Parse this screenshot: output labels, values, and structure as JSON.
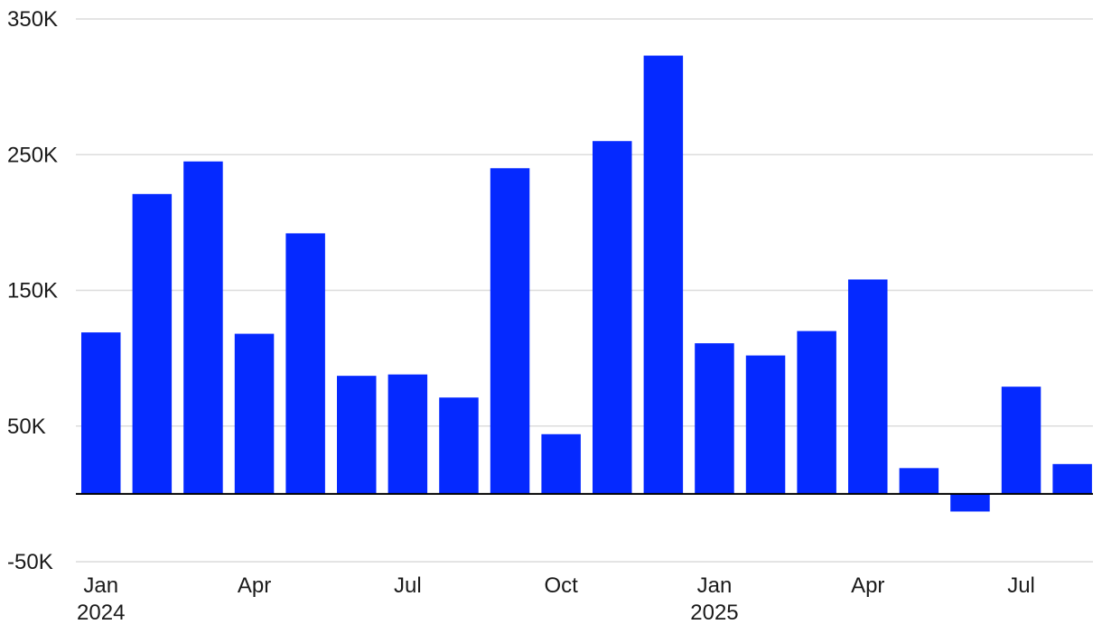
{
  "chart_data": {
    "type": "bar",
    "title": "",
    "xlabel": "",
    "ylabel": "",
    "categories": [
      "2024-01",
      "2024-02",
      "2024-03",
      "2024-04",
      "2024-05",
      "2024-06",
      "2024-07",
      "2024-08",
      "2024-09",
      "2024-10",
      "2024-11",
      "2024-12",
      "2025-01",
      "2025-02",
      "2025-03",
      "2025-04",
      "2025-05",
      "2025-06",
      "2025-07",
      "2025-08"
    ],
    "values": [
      119000,
      221000,
      245000,
      118000,
      192000,
      87000,
      88000,
      71000,
      240000,
      44000,
      260000,
      323000,
      111000,
      102000,
      120000,
      158000,
      19000,
      -13000,
      79000,
      22000
    ],
    "ylim": [
      -50000,
      350000
    ],
    "y_ticks": [
      {
        "value": 350000,
        "label": "350K"
      },
      {
        "value": 250000,
        "label": "250K"
      },
      {
        "value": 150000,
        "label": "150K"
      },
      {
        "value": 50000,
        "label": "50K"
      },
      {
        "value": -50000,
        "label": "-50K"
      }
    ],
    "x_ticks": [
      {
        "index": 0,
        "label": "Jan",
        "year": "2024"
      },
      {
        "index": 3,
        "label": "Apr"
      },
      {
        "index": 6,
        "label": "Jul"
      },
      {
        "index": 9,
        "label": "Oct"
      },
      {
        "index": 12,
        "label": "Jan",
        "year": "2025"
      },
      {
        "index": 15,
        "label": "Apr"
      },
      {
        "index": 18,
        "label": "Jul"
      }
    ],
    "grid": true,
    "bar_color": "#0529FF",
    "legend": "none"
  }
}
